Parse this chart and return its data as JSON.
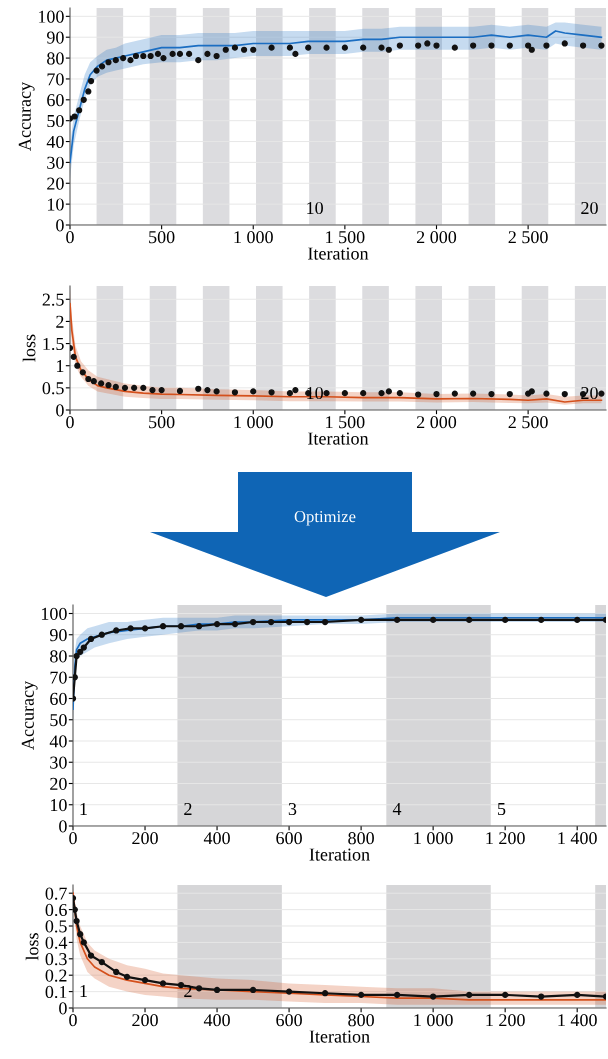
{
  "chart_data": [
    {
      "type": "line",
      "xlabel": "Iteration",
      "ylabel": "Accuracy",
      "xlim": [
        0,
        2925
      ],
      "ylim": [
        0,
        104
      ],
      "grid": "y",
      "xticks": [
        0,
        500,
        {
          "value": 1000,
          "label": "1 000"
        },
        {
          "value": 1500,
          "label": "1 500"
        },
        {
          "value": 2000,
          "label": "2 000"
        },
        {
          "value": 2500,
          "label": "2 500"
        }
      ],
      "yticks": [
        0,
        10,
        20,
        30,
        40,
        50,
        60,
        70,
        80,
        90,
        100
      ],
      "series": [
        {
          "type": "line",
          "color": "#1b6ec2",
          "marker": "none",
          "x": [
            0,
            20,
            50,
            80,
            110,
            150,
            200,
            250,
            300,
            400,
            500,
            600,
            700,
            800,
            900,
            1000,
            1100,
            1200,
            1300,
            1400,
            1500,
            1600,
            1700,
            1800,
            1900,
            2000,
            2100,
            2200,
            2300,
            2400,
            2500,
            2600,
            2650,
            2700,
            2800,
            2900
          ],
          "values": [
            30,
            45,
            55,
            65,
            72,
            76,
            79,
            80,
            81,
            83,
            85,
            85,
            86,
            86,
            86,
            87,
            87,
            87,
            88,
            88,
            88,
            89,
            89,
            90,
            90,
            90,
            90,
            90,
            91,
            90,
            91,
            90,
            93,
            92,
            91,
            90
          ],
          "lower": [
            22,
            38,
            50,
            60,
            67,
            71,
            73,
            74,
            75,
            77,
            78,
            78,
            79,
            79,
            80,
            81,
            81,
            81,
            82,
            82,
            82,
            83,
            83,
            84,
            84,
            84,
            84,
            84,
            85,
            84,
            85,
            84,
            87,
            86,
            85,
            84
          ],
          "upper": [
            38,
            52,
            62,
            72,
            78,
            81,
            84,
            85,
            87,
            89,
            91,
            91,
            92,
            92,
            92,
            93,
            93,
            93,
            93,
            93,
            93,
            94,
            94,
            95,
            95,
            95,
            95,
            95,
            96,
            95,
            96,
            95,
            97,
            97,
            96,
            95
          ]
        },
        {
          "type": "scatter",
          "color": "#111111",
          "marker": "circle",
          "x": [
            0,
            25,
            50,
            75,
            100,
            115,
            145,
            175,
            210,
            250,
            290,
            330,
            360,
            400,
            440,
            480,
            510,
            560,
            600,
            650,
            700,
            750,
            800,
            850,
            900,
            950,
            1000,
            1100,
            1200,
            1230,
            1300,
            1400,
            1500,
            1600,
            1700,
            1740,
            1800,
            1900,
            1950,
            2000,
            2100,
            2200,
            2300,
            2400,
            2500,
            2520,
            2600,
            2700,
            2800,
            2900
          ],
          "values": [
            51,
            52,
            55,
            60,
            64,
            69,
            74,
            76,
            78,
            79,
            80,
            79,
            81,
            81,
            81,
            82,
            80,
            82,
            82,
            82,
            79,
            82,
            81,
            84,
            85,
            84,
            84,
            85,
            85,
            82,
            85,
            85,
            85,
            85,
            85,
            84,
            86,
            86,
            87,
            86,
            85,
            86,
            86,
            86,
            86,
            84,
            86,
            87,
            86,
            86
          ]
        }
      ],
      "bands": [
        {
          "axis": "x",
          "from": 145,
          "to": 290,
          "color": "#dcdcdf"
        },
        {
          "axis": "x",
          "from": 435,
          "to": 580,
          "color": "#dcdcdf"
        },
        {
          "axis": "x",
          "from": 725,
          "to": 870,
          "color": "#dcdcdf"
        },
        {
          "axis": "x",
          "from": 1015,
          "to": 1160,
          "color": "#dcdcdf"
        },
        {
          "axis": "x",
          "from": 1305,
          "to": 1450,
          "color": "#dcdcdf"
        },
        {
          "axis": "x",
          "from": 1595,
          "to": 1740,
          "color": "#dcdcdf"
        },
        {
          "axis": "x",
          "from": 1885,
          "to": 2030,
          "color": "#dcdcdf"
        },
        {
          "axis": "x",
          "from": 2175,
          "to": 2320,
          "color": "#dcdcdf"
        },
        {
          "axis": "x",
          "from": 2465,
          "to": 2610,
          "color": "#dcdcdf"
        },
        {
          "axis": "x",
          "from": 2755,
          "to": 2925,
          "color": "#dcdcdf"
        }
      ],
      "x2lim": [
        1.1,
        20.6
      ],
      "x2ticks": [
        10,
        20
      ]
    },
    {
      "type": "line",
      "xlabel": "Iteration",
      "ylabel": "loss",
      "xlim": [
        0,
        2925
      ],
      "ylim": [
        0,
        2.8
      ],
      "grid": "y",
      "xticks": [
        0,
        500,
        {
          "value": 1000,
          "label": "1 000"
        },
        {
          "value": 1500,
          "label": "1 500"
        },
        {
          "value": 2000,
          "label": "2 000"
        },
        {
          "value": 2500,
          "label": "2 500"
        }
      ],
      "yticks": [
        0,
        0.5,
        1,
        1.5,
        2,
        2.5
      ],
      "series": [
        {
          "type": "line",
          "color": "#d4501c",
          "marker": "none",
          "x": [
            0,
            10,
            30,
            60,
            100,
            150,
            200,
            300,
            400,
            500,
            600,
            800,
            1000,
            1200,
            1400,
            1600,
            1800,
            2000,
            2200,
            2400,
            2500,
            2600,
            2700,
            2800,
            2900
          ],
          "values": [
            2.4,
            1.8,
            1.2,
            0.9,
            0.7,
            0.55,
            0.5,
            0.42,
            0.38,
            0.36,
            0.35,
            0.33,
            0.32,
            0.3,
            0.3,
            0.28,
            0.28,
            0.25,
            0.26,
            0.24,
            0.22,
            0.25,
            0.18,
            0.22,
            0.22
          ],
          "lower": [
            2.0,
            1.5,
            1.0,
            0.75,
            0.55,
            0.42,
            0.38,
            0.3,
            0.27,
            0.25,
            0.25,
            0.23,
            0.22,
            0.2,
            0.2,
            0.19,
            0.19,
            0.17,
            0.18,
            0.16,
            0.15,
            0.17,
            0.12,
            0.15,
            0.15
          ],
          "upper": [
            2.8,
            2.1,
            1.45,
            1.1,
            0.9,
            0.75,
            0.7,
            0.6,
            0.55,
            0.5,
            0.5,
            0.47,
            0.45,
            0.42,
            0.42,
            0.4,
            0.4,
            0.36,
            0.37,
            0.35,
            0.33,
            0.36,
            0.3,
            0.33,
            0.33
          ]
        },
        {
          "type": "scatter",
          "color": "#111111",
          "marker": "circle",
          "x": [
            0,
            20,
            40,
            70,
            100,
            130,
            170,
            210,
            250,
            300,
            350,
            400,
            450,
            500,
            600,
            700,
            750,
            800,
            900,
            1000,
            1100,
            1200,
            1230,
            1300,
            1400,
            1500,
            1600,
            1700,
            1740,
            1800,
            1900,
            2000,
            2100,
            2200,
            2300,
            2400,
            2500,
            2520,
            2600,
            2700,
            2800,
            2900
          ],
          "values": [
            1.4,
            1.2,
            1.0,
            0.85,
            0.7,
            0.65,
            0.6,
            0.56,
            0.52,
            0.5,
            0.5,
            0.5,
            0.45,
            0.45,
            0.43,
            0.48,
            0.45,
            0.42,
            0.4,
            0.42,
            0.4,
            0.38,
            0.45,
            0.38,
            0.38,
            0.38,
            0.38,
            0.38,
            0.42,
            0.38,
            0.35,
            0.36,
            0.37,
            0.37,
            0.36,
            0.36,
            0.37,
            0.42,
            0.37,
            0.36,
            0.36,
            0.37
          ]
        }
      ],
      "bands": [
        {
          "axis": "x",
          "from": 145,
          "to": 290,
          "color": "#dcdcdf"
        },
        {
          "axis": "x",
          "from": 435,
          "to": 580,
          "color": "#dcdcdf"
        },
        {
          "axis": "x",
          "from": 725,
          "to": 870,
          "color": "#dcdcdf"
        },
        {
          "axis": "x",
          "from": 1015,
          "to": 1160,
          "color": "#dcdcdf"
        },
        {
          "axis": "x",
          "from": 1305,
          "to": 1450,
          "color": "#dcdcdf"
        },
        {
          "axis": "x",
          "from": 1595,
          "to": 1740,
          "color": "#dcdcdf"
        },
        {
          "axis": "x",
          "from": 1885,
          "to": 2030,
          "color": "#dcdcdf"
        },
        {
          "axis": "x",
          "from": 2175,
          "to": 2320,
          "color": "#dcdcdf"
        },
        {
          "axis": "x",
          "from": 2465,
          "to": 2610,
          "color": "#dcdcdf"
        },
        {
          "axis": "x",
          "from": 2755,
          "to": 2925,
          "color": "#dcdcdf"
        }
      ],
      "x2lim": [
        1.1,
        20.6
      ],
      "x2ticks": [
        10,
        20
      ]
    },
    {
      "type": "other",
      "annotations": [
        "Optimize"
      ]
    },
    {
      "type": "line",
      "xlabel": "Iteration",
      "ylabel": "Accuracy",
      "xlim": [
        0,
        1480
      ],
      "ylim": [
        0,
        104
      ],
      "grid": "y",
      "xticks": [
        0,
        200,
        400,
        600,
        800,
        {
          "value": 1000,
          "label": "1 000"
        },
        {
          "value": 1200,
          "label": "1 200"
        },
        {
          "value": 1400,
          "label": "1 400"
        }
      ],
      "yticks": [
        0,
        10,
        20,
        30,
        40,
        50,
        60,
        70,
        80,
        90,
        100
      ],
      "series": [
        {
          "type": "line",
          "color": "#1b6ec2",
          "marker": "none",
          "x": [
            0,
            5,
            10,
            20,
            40,
            60,
            100,
            150,
            200,
            250,
            300,
            350,
            400,
            450,
            500,
            600,
            700,
            800,
            900,
            1000,
            1100,
            1200,
            1300,
            1400,
            1480
          ],
          "values": [
            55,
            75,
            83,
            86,
            88,
            89,
            91,
            92,
            93,
            94,
            94,
            95,
            95,
            96,
            96,
            97,
            97,
            97,
            98,
            98,
            98,
            98,
            98,
            98,
            98
          ],
          "lower": [
            50,
            68,
            78,
            80,
            82,
            84,
            86,
            88,
            89,
            90,
            91,
            92,
            92,
            93,
            93,
            94,
            95,
            95,
            96,
            96,
            96,
            96,
            96,
            96,
            96
          ],
          "upper": [
            60,
            82,
            88,
            90,
            93,
            94,
            96,
            96,
            97,
            98,
            98,
            98,
            98,
            99,
            99,
            99,
            99,
            99,
            100,
            100,
            100,
            100,
            100,
            100,
            100
          ]
        },
        {
          "type": "line",
          "color": "#111111",
          "marker": "circle",
          "x": [
            0,
            5,
            10,
            20,
            30,
            50,
            80,
            120,
            160,
            200,
            250,
            300,
            350,
            400,
            450,
            500,
            550,
            600,
            650,
            700,
            800,
            900,
            1000,
            1100,
            1200,
            1300,
            1400,
            1480
          ],
          "values": [
            60,
            70,
            80,
            82,
            84,
            88,
            90,
            92,
            93,
            93,
            94,
            94,
            94,
            95,
            95,
            96,
            96,
            96,
            96,
            96,
            97,
            97,
            97,
            97,
            97,
            97,
            97,
            97
          ]
        }
      ],
      "bands": [
        {
          "axis": "x",
          "from": 290,
          "to": 580,
          "color": "#d6d6d8"
        },
        {
          "axis": "x",
          "from": 870,
          "to": 1160,
          "color": "#d6d6d8"
        },
        {
          "axis": "x",
          "from": 1450,
          "to": 1480,
          "color": "#d6d6d8"
        }
      ],
      "x2lim": [
        0.9,
        6
      ],
      "x2ticks": [
        1,
        2,
        3,
        4,
        5
      ]
    },
    {
      "type": "line",
      "xlabel": "Iteration",
      "ylabel": "loss",
      "xlim": [
        0,
        1480
      ],
      "ylim": [
        0,
        0.75
      ],
      "grid": "y",
      "xticks": [
        0,
        200,
        400,
        600,
        800,
        {
          "value": 1000,
          "label": "1 000"
        },
        {
          "value": 1200,
          "label": "1 200"
        },
        {
          "value": 1400,
          "label": "1 400"
        }
      ],
      "yticks": [
        0,
        0.1,
        0.2,
        0.3,
        0.4,
        0.5,
        0.6,
        0.7
      ],
      "series": [
        {
          "type": "line",
          "color": "#d4501c",
          "marker": "none",
          "x": [
            0,
            10,
            20,
            40,
            60,
            100,
            150,
            200,
            250,
            300,
            400,
            500,
            600,
            700,
            800,
            900,
            1000,
            1100,
            1200,
            1300,
            1400,
            1480
          ],
          "values": [
            0.7,
            0.5,
            0.4,
            0.3,
            0.25,
            0.2,
            0.17,
            0.15,
            0.13,
            0.12,
            0.11,
            0.1,
            0.09,
            0.08,
            0.07,
            0.06,
            0.06,
            0.05,
            0.05,
            0.05,
            0.05,
            0.05
          ],
          "lower": [
            0.65,
            0.42,
            0.32,
            0.22,
            0.18,
            0.13,
            0.1,
            0.08,
            0.07,
            0.06,
            0.05,
            0.05,
            0.04,
            0.03,
            0.03,
            0.02,
            0.02,
            0.02,
            0.02,
            0.02,
            0.02,
            0.02
          ],
          "upper": [
            0.74,
            0.58,
            0.5,
            0.4,
            0.35,
            0.3,
            0.26,
            0.24,
            0.21,
            0.2,
            0.18,
            0.17,
            0.15,
            0.14,
            0.13,
            0.12,
            0.12,
            0.1,
            0.1,
            0.1,
            0.1,
            0.1
          ]
        },
        {
          "type": "line",
          "color": "#111111",
          "marker": "circle",
          "x": [
            0,
            5,
            10,
            20,
            30,
            50,
            80,
            120,
            150,
            200,
            250,
            300,
            350,
            400,
            500,
            600,
            700,
            800,
            900,
            1000,
            1100,
            1200,
            1300,
            1400,
            1480
          ],
          "values": [
            0.67,
            0.6,
            0.53,
            0.45,
            0.4,
            0.32,
            0.28,
            0.22,
            0.19,
            0.17,
            0.15,
            0.14,
            0.12,
            0.11,
            0.11,
            0.1,
            0.09,
            0.08,
            0.08,
            0.07,
            0.08,
            0.08,
            0.07,
            0.08,
            0.07
          ]
        }
      ],
      "bands": [
        {
          "axis": "x",
          "from": 290,
          "to": 580,
          "color": "#d6d6d8"
        },
        {
          "axis": "x",
          "from": 870,
          "to": 1160,
          "color": "#d6d6d8"
        },
        {
          "axis": "x",
          "from": 1450,
          "to": 1480,
          "color": "#d6d6d8"
        }
      ],
      "x2lim": [
        0.9,
        6
      ],
      "x2ticks": [
        1,
        2
      ]
    }
  ]
}
